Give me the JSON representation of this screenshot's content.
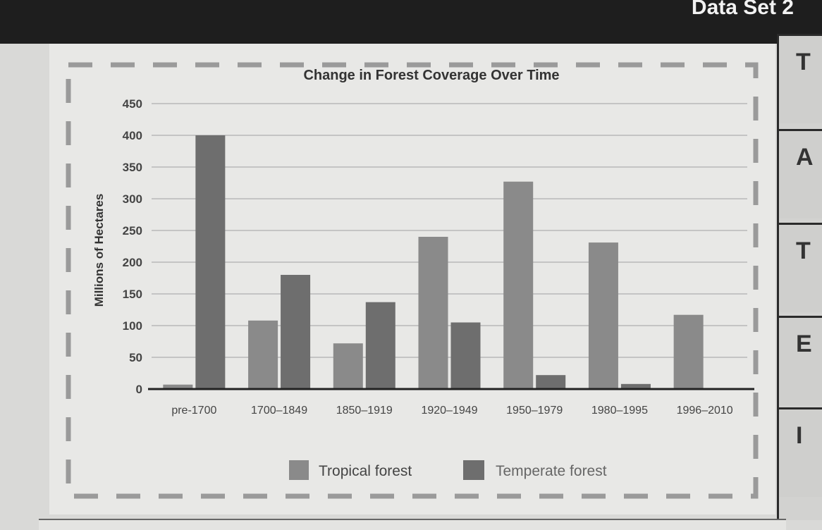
{
  "header": {
    "set_title": "Data Set 2"
  },
  "side_tabs": [
    "T",
    "A",
    "T",
    "E",
    "I"
  ],
  "chart_data": {
    "type": "bar",
    "title": "Change in Forest Coverage Over Time",
    "xlabel": "",
    "ylabel": "Millions of Hectares",
    "ylim": [
      0,
      450
    ],
    "yticks": [
      0,
      50,
      100,
      150,
      200,
      250,
      300,
      350,
      400,
      450
    ],
    "grid": true,
    "legend_position": "bottom",
    "categories": [
      "pre-1700",
      "1700–1849",
      "1850–1919",
      "1920–1949",
      "1950–1979",
      "1980–1995",
      "1996–2010"
    ],
    "series": [
      {
        "name": "Tropical forest",
        "color": "#8a8a8a",
        "values": [
          7,
          108,
          72,
          240,
          327,
          231,
          117
        ]
      },
      {
        "name": "Temperate forest",
        "color": "#6e6e6e",
        "values": [
          400,
          180,
          137,
          105,
          22,
          8,
          0
        ]
      }
    ]
  }
}
